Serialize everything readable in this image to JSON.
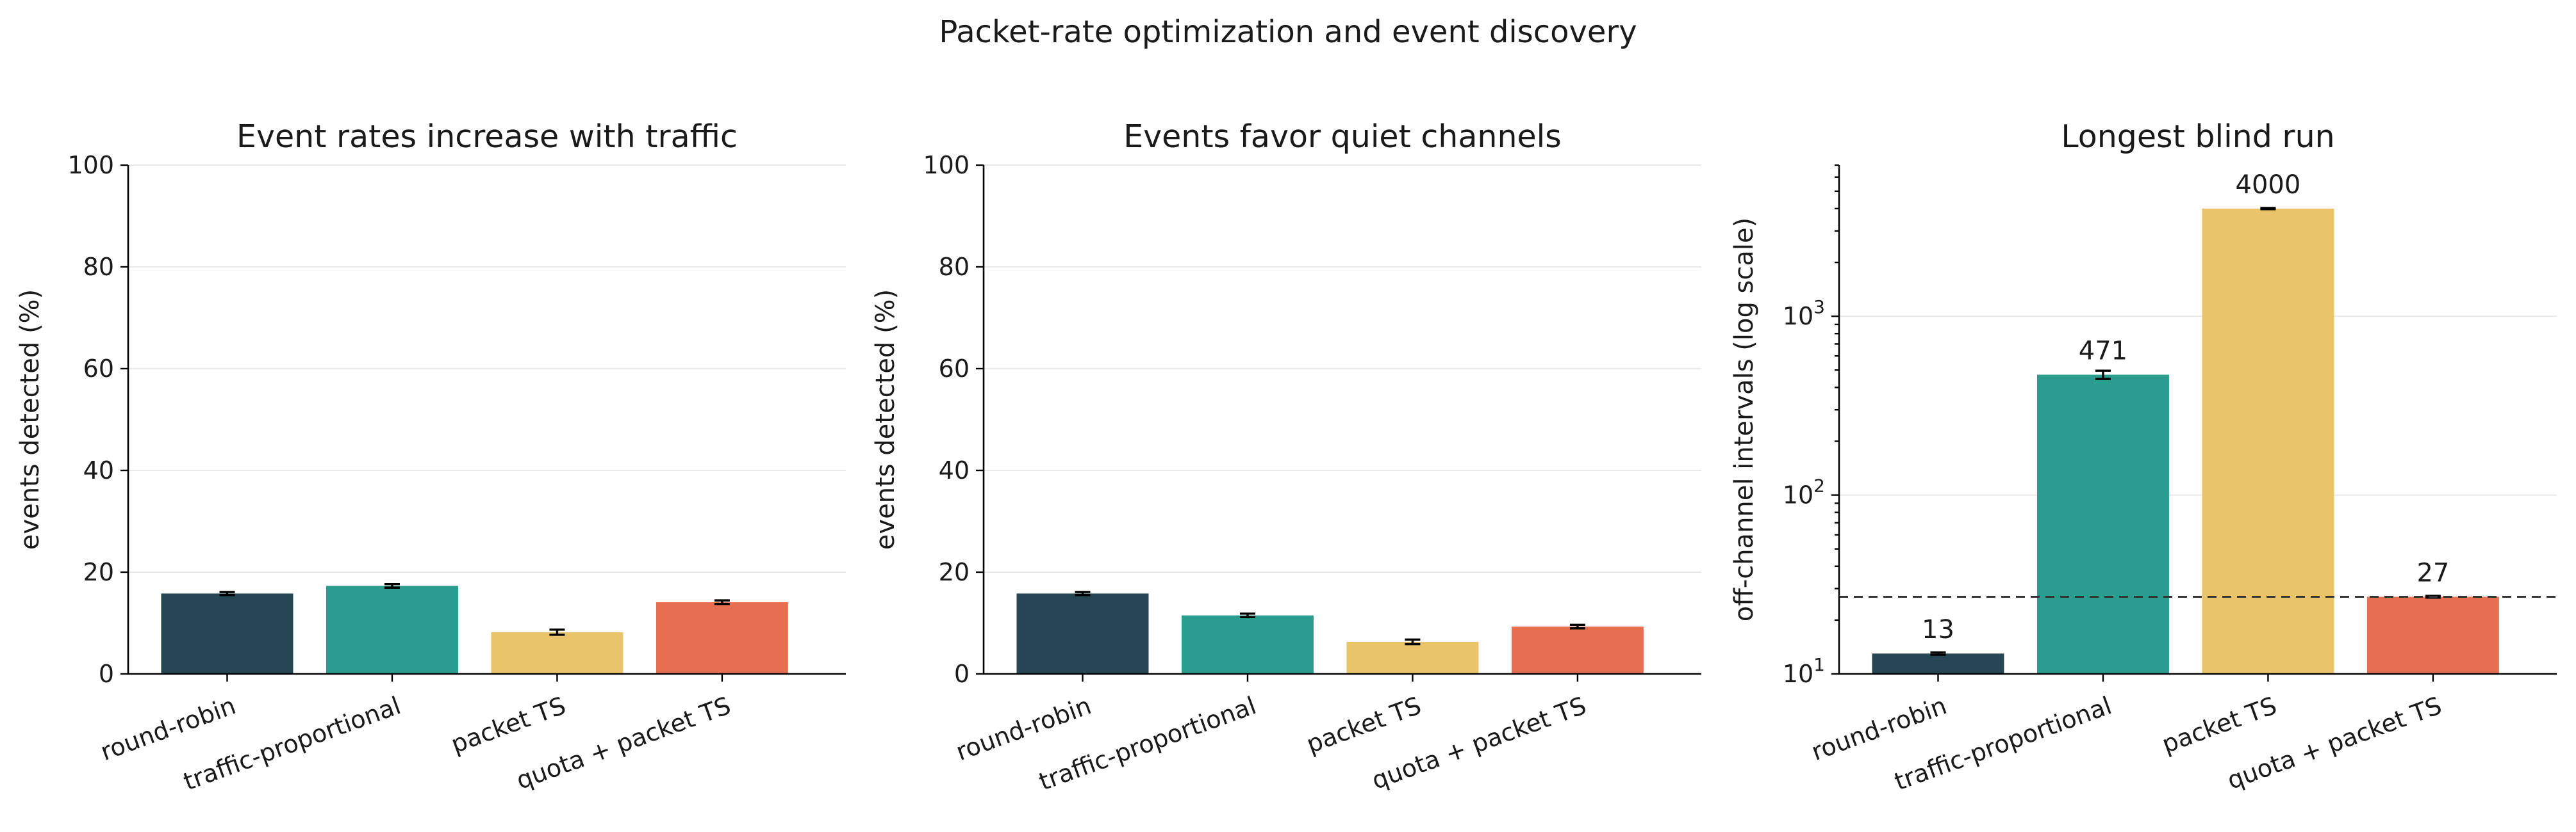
{
  "figure_title": "Packet-rate optimization and event discovery",
  "colors": [
    "#264653",
    "#2a9d8f",
    "#e9c46a",
    "#e76f51"
  ],
  "chart_data": [
    {
      "type": "bar",
      "title": "Event rates increase with traffic",
      "categories": [
        "round-robin",
        "traffic-proportional",
        "packet TS",
        "quota + packet TS"
      ],
      "values": [
        15.8,
        17.3,
        8.2,
        14.1
      ],
      "errors": [
        0.3,
        0.35,
        0.5,
        0.35
      ],
      "ylabel": "events detected (%)",
      "xlabel": "",
      "ylim": [
        0,
        100
      ],
      "yscale": "linear",
      "yticks": [
        0,
        20,
        40,
        60,
        80,
        100
      ],
      "ytick_labels": [
        "0",
        "20",
        "40",
        "60",
        "80",
        "100"
      ],
      "grid": "y",
      "legend": "none"
    },
    {
      "type": "bar",
      "title": "Events favor quiet channels",
      "categories": [
        "round-robin",
        "traffic-proportional",
        "packet TS",
        "quota + packet TS"
      ],
      "values": [
        15.8,
        11.5,
        6.3,
        9.3
      ],
      "errors": [
        0.3,
        0.35,
        0.45,
        0.35
      ],
      "ylabel": "events detected (%)",
      "xlabel": "",
      "ylim": [
        0,
        100
      ],
      "yscale": "linear",
      "yticks": [
        0,
        20,
        40,
        60,
        80,
        100
      ],
      "ytick_labels": [
        "0",
        "20",
        "40",
        "60",
        "80",
        "100"
      ],
      "grid": "y",
      "legend": "none"
    },
    {
      "type": "bar",
      "title": "Longest blind run",
      "categories": [
        "round-robin",
        "traffic-proportional",
        "packet TS",
        "quota + packet TS"
      ],
      "values": [
        13,
        471,
        4000,
        27
      ],
      "value_labels": [
        "13",
        "471",
        "4000",
        "27"
      ],
      "errors": [
        0.2,
        25,
        30,
        0.3
      ],
      "reference_line": 27,
      "ylabel": "off-channel intervals (log scale)",
      "xlabel": "",
      "ylim": [
        10,
        7000
      ],
      "yscale": "log",
      "yticks": [
        10,
        100,
        1000
      ],
      "ytick_labels": [
        {
          "base": "10",
          "exp": "1"
        },
        {
          "base": "10",
          "exp": "2"
        },
        {
          "base": "10",
          "exp": "3"
        }
      ],
      "grid": "y",
      "legend": "none"
    }
  ]
}
